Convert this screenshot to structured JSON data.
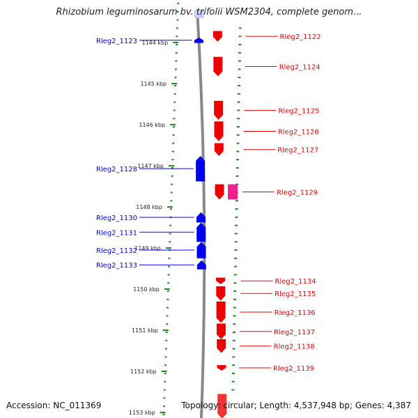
{
  "title": "Rhizobium leguminosarum bv. trifolii WSM2304, complete genom...",
  "footer": {
    "accession": "Accession: NC_011369",
    "summary": "Topology: circular; Length: 4,537,948 bp; Genes: 4,387"
  },
  "colors": {
    "reverse_strand": "#0000ee",
    "forward_strand": "#ee0000",
    "highlight": "#ee2288",
    "backbone": "#888888",
    "ticks": "#228822"
  },
  "kbp_ticks": [
    {
      "label": "1144 kbp",
      "pos": 1144.0
    },
    {
      "label": "1145 kbp",
      "pos": 1145.0
    },
    {
      "label": "1146 kbp",
      "pos": 1146.0
    },
    {
      "label": "1147 kbp",
      "pos": 1147.0
    },
    {
      "label": "1148 kbp",
      "pos": 1148.0
    },
    {
      "label": "1149 kbp",
      "pos": 1149.0
    },
    {
      "label": "1150 kbp",
      "pos": 1150.0
    },
    {
      "label": "1151 kbp",
      "pos": 1151.0
    },
    {
      "label": "1152 kbp",
      "pos": 1152.0
    },
    {
      "label": "1153 kbp",
      "pos": 1153.0
    }
  ],
  "genes": [
    {
      "name": "Rleg2_1122",
      "strand": "+",
      "start": 1143.72,
      "end": 1143.98
    },
    {
      "name": "Rleg2_1123",
      "strand": "-",
      "start": 1143.88,
      "end": 1144.01
    },
    {
      "name": "Rleg2_1124",
      "strand": "+",
      "start": 1144.35,
      "end": 1144.82
    },
    {
      "name": "Rleg2_1125",
      "strand": "+",
      "start": 1145.42,
      "end": 1145.88
    },
    {
      "name": "Rleg2_1126",
      "strand": "+",
      "start": 1145.92,
      "end": 1146.4
    },
    {
      "name": "Rleg2_1127",
      "strand": "+",
      "start": 1146.45,
      "end": 1146.76
    },
    {
      "name": "Rleg2_1128",
      "strand": "-",
      "start": 1146.76,
      "end": 1147.38
    },
    {
      "name": "Rleg2_1129",
      "strand": "+",
      "start": 1147.45,
      "end": 1147.82,
      "extra": true
    },
    {
      "name": "Rleg2_1130",
      "strand": "-",
      "start": 1148.13,
      "end": 1148.38
    },
    {
      "name": "Rleg2_1131",
      "strand": "-",
      "start": 1148.38,
      "end": 1148.85
    },
    {
      "name": "Rleg2_1132",
      "strand": "-",
      "start": 1148.85,
      "end": 1149.25
    },
    {
      "name": "Rleg2_1133",
      "strand": "-",
      "start": 1149.3,
      "end": 1149.52
    },
    {
      "name": "Rleg2_1134",
      "strand": "+",
      "start": 1149.72,
      "end": 1149.88
    },
    {
      "name": "Rleg2_1135",
      "strand": "+",
      "start": 1149.93,
      "end": 1150.28
    },
    {
      "name": "Rleg2_1136",
      "strand": "+",
      "start": 1150.3,
      "end": 1150.82
    },
    {
      "name": "Rleg2_1137",
      "strand": "+",
      "start": 1150.84,
      "end": 1151.22
    },
    {
      "name": "Rleg2_1138",
      "strand": "+",
      "start": 1151.22,
      "end": 1151.55
    },
    {
      "name": "Rleg2_1139",
      "strand": "+",
      "start": 1151.85,
      "end": 1151.98
    },
    {
      "name": "",
      "strand": "+",
      "start": 1152.55,
      "end": 1153.15,
      "partial": true
    }
  ]
}
